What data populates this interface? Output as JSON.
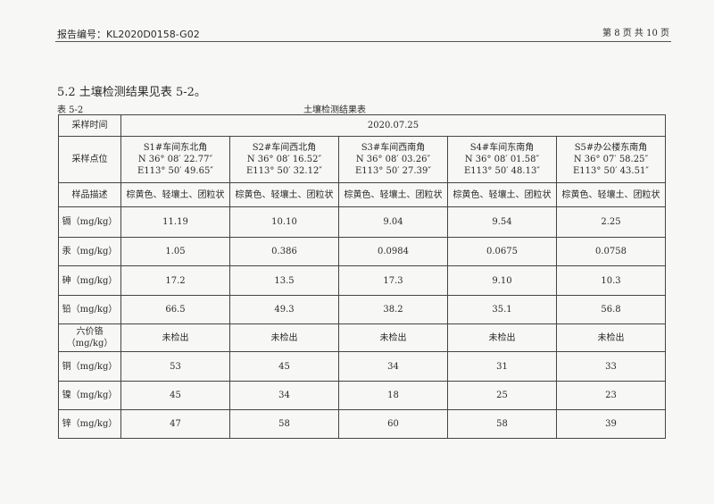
{
  "header": {
    "report_no": "报告编号：KL2020D0158-G02",
    "page": "第 8 页 共 10 页"
  },
  "section_title": "5.2 土壤检测结果见表 5-2。",
  "table_no": "表 5-2",
  "table_title": "土壤检测结果表",
  "table": {
    "time_label": "采样时间",
    "time_value": "2020.07.25",
    "location_label": "采样点位",
    "locations": [
      {
        "name": "S1#车间东北角",
        "n": "N 36° 08′ 22.77″",
        "e": "E113° 50′ 49.65″"
      },
      {
        "name": "S2#车间西北角",
        "n": "N 36° 08′ 16.52″",
        "e": "E113° 50′ 32.12″"
      },
      {
        "name": "S3#车间西南角",
        "n": "N 36° 08′ 03.26″",
        "e": "E113° 50′ 27.39″"
      },
      {
        "name": "S4#车间东南角",
        "n": "N 36° 08′ 01.58″",
        "e": "E113° 50′ 48.13″"
      },
      {
        "name": "S5#办公楼东南角",
        "n": "N 36° 07′ 58.25″",
        "e": "E113° 50′ 43.51″"
      }
    ],
    "desc_label": "样品描述",
    "descs": [
      "棕黄色、轻壤土、团粒状",
      "棕黄色、轻壤土、团粒状",
      "棕黄色、轻壤土、团粒状",
      "棕黄色、轻壤土、团粒状",
      "棕黄色、轻壤土、团粒状"
    ],
    "rows": [
      {
        "label": "镉（mg/kg）",
        "values": [
          "11.19",
          "10.10",
          "9.04",
          "9.54",
          "2.25"
        ]
      },
      {
        "label": "汞（mg/kg）",
        "values": [
          "1.05",
          "0.386",
          "0.0984",
          "0.0675",
          "0.0758"
        ]
      },
      {
        "label": "砷（mg/kg）",
        "values": [
          "17.2",
          "13.5",
          "17.3",
          "9.10",
          "10.3"
        ]
      },
      {
        "label": "铅（mg/kg）",
        "values": [
          "66.5",
          "49.3",
          "38.2",
          "35.1",
          "56.8"
        ]
      },
      {
        "label": "六价铬（mg/kg）",
        "values": [
          "未检出",
          "未检出",
          "未检出",
          "未检出",
          "未检出"
        ]
      },
      {
        "label": "铜（mg/kg）",
        "values": [
          "53",
          "45",
          "34",
          "31",
          "33"
        ]
      },
      {
        "label": "镍（mg/kg）",
        "values": [
          "45",
          "34",
          "18",
          "25",
          "23"
        ]
      },
      {
        "label": "锌（mg/kg）",
        "values": [
          "47",
          "58",
          "60",
          "58",
          "39"
        ]
      }
    ]
  }
}
